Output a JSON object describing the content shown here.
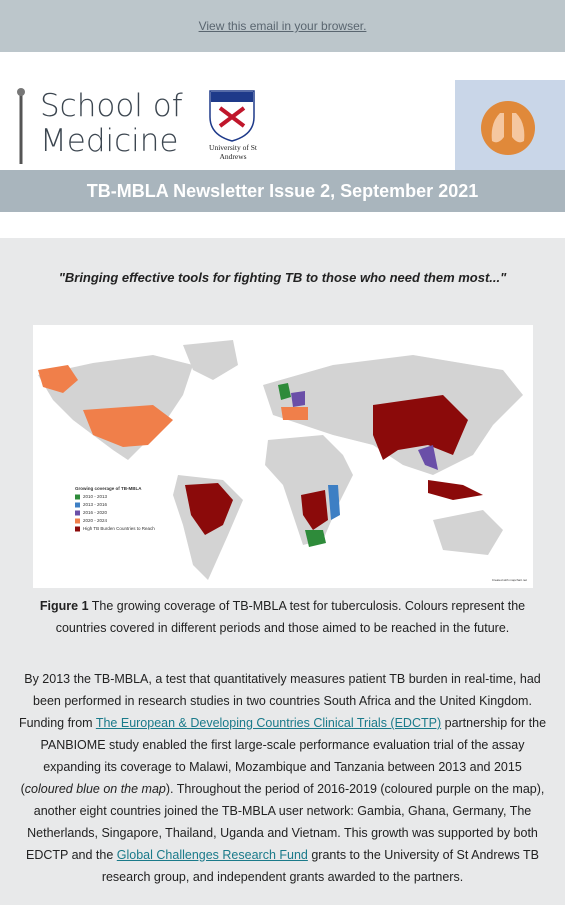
{
  "browser_link": "View this email in your browser.",
  "header": {
    "logo_line1": "School of",
    "logo_line2": "Medicine",
    "university": "University of St Andrews",
    "title": "TB-MBLA Newsletter Issue 2, September 2021"
  },
  "quote": "\"Bringing effective tools for fighting TB to those who need them most...\"",
  "map": {
    "legend_title": "Growing coverage of TB-MBLA",
    "legend": [
      {
        "label": "2010 - 2013",
        "color": "#2e8b3a"
      },
      {
        "label": "2013 - 2016",
        "color": "#3d7fc4"
      },
      {
        "label": "2016 - 2020",
        "color": "#6a4fa8"
      },
      {
        "label": "2020 - 2024",
        "color": "#f07f4a"
      },
      {
        "label": "High TB Burden Countries to Reach",
        "color": "#8b0a0a"
      }
    ],
    "credit": "Created with mapchart.net"
  },
  "caption": {
    "label": "Figure 1",
    "text": " The growing coverage of TB-MBLA test for tuberculosis. Colours represent the countries covered in different periods and those aimed to be reached in the future."
  },
  "paragraph": {
    "text1": "By 2013 the TB-MBLA, a test that quantitatively measures patient TB burden in real-time, had been performed in research studies in two countries South Africa and the United Kingdom. Funding from ",
    "link1": "The European & Developing Countries Clinical Trials (EDCTP)",
    "text2": " partnership for the PANBIOME study enabled the first large-scale performance evaluation trial of the assay expanding its coverage to Malawi, Mozambique and Tanzania between 2013 and 2015 (",
    "italic": "coloured blue on the map",
    "text3": "). Throughout the period of 2016-2019 (coloured purple on the map), another eight countries joined the TB-MBLA user network: Gambia, Ghana, Germany, The Netherlands, Singapore, Thailand, Uganda and Vietnam. This growth was supported by both EDCTP and the ",
    "link2": "Global Challenges Research Fund",
    "text4": " grants to the University of St Andrews TB research group, and independent grants awarded to the partners."
  }
}
